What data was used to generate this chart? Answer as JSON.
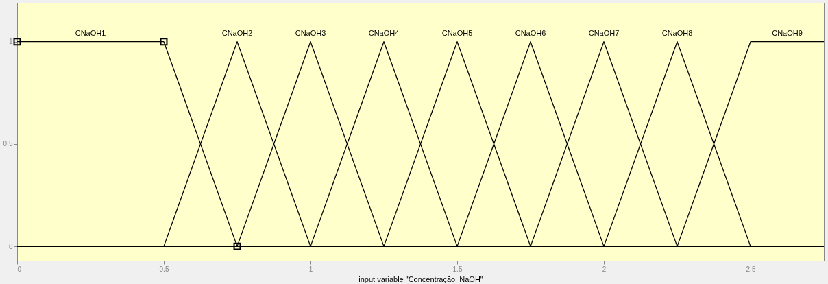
{
  "chart_data": {
    "type": "line",
    "xlabel": "input variable \"Concentração_NaOH\"",
    "xlim": [
      0,
      2.75
    ],
    "ylim": [
      -0.07,
      1.19
    ],
    "xticks": [
      0,
      0.5,
      1,
      1.5,
      2,
      2.5
    ],
    "yticks": [
      0,
      0.5,
      1
    ],
    "grid": false,
    "series": [
      {
        "name": "CNaOH1",
        "color": "#000000",
        "marker": "square",
        "x": [
          0,
          0.5,
          0.75
        ],
        "values": [
          1,
          1,
          0
        ]
      },
      {
        "name": "CNaOH2",
        "color": "#000000",
        "x": [
          0,
          0.5,
          0.75,
          1.0,
          2.75
        ],
        "values": [
          0,
          0,
          1,
          0,
          0
        ]
      },
      {
        "name": "CNaOH3",
        "color": "#000000",
        "x": [
          0,
          0.75,
          1.0,
          1.25,
          2.75
        ],
        "values": [
          0,
          0,
          1,
          0,
          0
        ]
      },
      {
        "name": "CNaOH4",
        "color": "#000000",
        "x": [
          0,
          1.0,
          1.25,
          1.5,
          2.75
        ],
        "values": [
          0,
          0,
          1,
          0,
          0
        ]
      },
      {
        "name": "CNaOH5",
        "color": "#000000",
        "x": [
          0,
          1.25,
          1.5,
          1.75,
          2.75
        ],
        "values": [
          0,
          0,
          1,
          0,
          0
        ]
      },
      {
        "name": "CNaOH6",
        "color": "#000000",
        "x": [
          0,
          1.5,
          1.75,
          2.0,
          2.75
        ],
        "values": [
          0,
          0,
          1,
          0,
          0
        ]
      },
      {
        "name": "CNaOH7",
        "color": "#000000",
        "x": [
          0,
          1.75,
          2.0,
          2.25,
          2.75
        ],
        "values": [
          0,
          0,
          1,
          0,
          0
        ]
      },
      {
        "name": "CNaOH8",
        "color": "#000000",
        "x": [
          0,
          2.0,
          2.25,
          2.5,
          2.75
        ],
        "values": [
          0,
          0,
          1,
          0,
          0
        ]
      },
      {
        "name": "CNaOH9",
        "color": "#000000",
        "x": [
          0,
          2.25,
          2.5,
          2.75
        ],
        "values": [
          0,
          0,
          1,
          1
        ]
      }
    ]
  }
}
